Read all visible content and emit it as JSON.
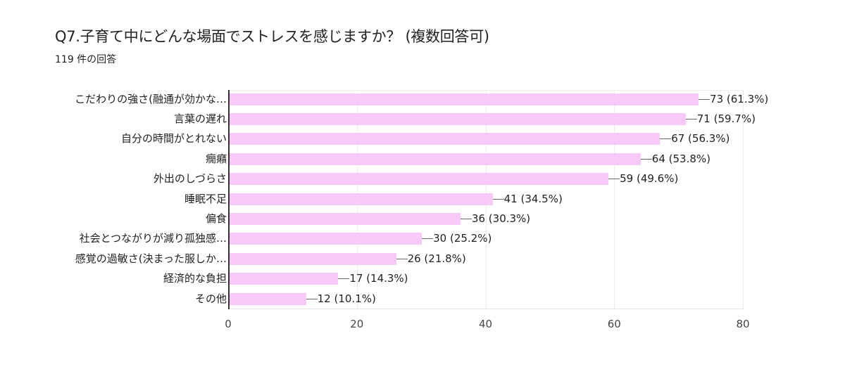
{
  "header": {
    "title": "Q7.子育て中にどんな場面でストレスを感じますか？ (複数回答可)",
    "response_count": "119 件の回答"
  },
  "colors": {
    "bar": "#f8c8f8",
    "axis": "#333333",
    "grid": "#ececec"
  },
  "chart_data": {
    "type": "bar",
    "orientation": "horizontal",
    "title": "Q7.子育て中にどんな場面でストレスを感じますか？ (複数回答可)",
    "subtitle": "119 件の回答",
    "xlabel": "",
    "ylabel": "",
    "xlim": [
      0,
      80
    ],
    "xticks": [
      "0",
      "20",
      "40",
      "60",
      "80"
    ],
    "grid": true,
    "legend": null,
    "categories": [
      "こだわりの強さ(融通が効かな…",
      "言葉の遅れ",
      "自分の時間がとれない",
      "癇癪",
      "外出のしづらさ",
      "睡眠不足",
      "偏食",
      "社会とつながりが減り孤独感…",
      "感覚の過敏さ(決まった服しか…",
      "経済的な負担",
      "その他"
    ],
    "values": [
      73,
      71,
      67,
      64,
      59,
      41,
      36,
      30,
      26,
      17,
      12
    ],
    "percentages": [
      "61.3%",
      "59.7%",
      "56.3%",
      "53.8%",
      "49.6%",
      "34.5%",
      "30.3%",
      "25.2%",
      "21.8%",
      "14.3%",
      "10.1%"
    ],
    "labels": [
      "73 (61.3%)",
      "71 (59.7%)",
      "67 (56.3%)",
      "64 (53.8%)",
      "59 (49.6%)",
      "41 (34.5%)",
      "36 (30.3%)",
      "30 (25.2%)",
      "26 (21.8%)",
      "17 (14.3%)",
      "12 (10.1%)"
    ]
  }
}
